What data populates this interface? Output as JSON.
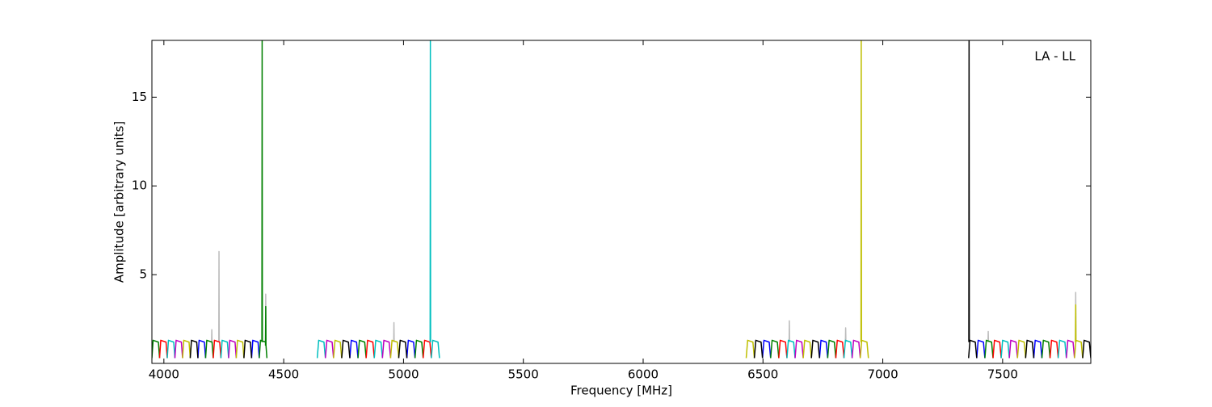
{
  "chart_data": {
    "type": "line",
    "xlabel": "Frequency [MHz]",
    "ylabel": "Amplitude [arbitrary units]",
    "annotation": "LA - LL",
    "xlim": [
      3950,
      7868
    ],
    "ylim": [
      0,
      18.2
    ],
    "xticks": [
      4000,
      4500,
      5000,
      5500,
      6000,
      6500,
      7000,
      7500
    ],
    "yticks": [
      5,
      10,
      15
    ],
    "grid": false,
    "series": [
      {
        "color": "#bbbbbb",
        "x": [
          4199,
          4200,
          4201,
          null,
          4229,
          4230,
          4231,
          null,
          4424,
          4425,
          4426,
          null,
          4959,
          4960,
          4961,
          null,
          6609,
          6610,
          6611,
          null,
          6844,
          6845,
          6846,
          null,
          7439,
          7440,
          7441,
          null,
          7804,
          7805,
          7806
        ],
        "values": [
          1.2,
          1.9,
          1.2,
          null,
          1.2,
          6.3,
          1.2,
          null,
          1.2,
          3.9,
          1.2,
          null,
          1.2,
          2.3,
          1.2,
          null,
          1.2,
          2.4,
          1.2,
          null,
          1.2,
          2.0,
          1.2,
          null,
          1.2,
          1.8,
          1.2,
          null,
          1.2,
          4.0,
          1.2
        ]
      },
      {
        "color": "#0000ff",
        "x": [
          4142,
          4147,
          4169,
          4174,
          null,
          4366,
          4371,
          4393,
          4398,
          null,
          4776,
          4782,
          4804,
          4810,
          null,
          5014,
          5020,
          5042,
          5048,
          null,
          6498,
          6504,
          6526,
          6532,
          null,
          6736,
          6742,
          6764,
          6770,
          null,
          7392,
          7398,
          7420,
          7426,
          null,
          7630,
          7636,
          7658,
          7664
        ],
        "values": [
          0.3,
          1.3,
          1.2,
          0.3,
          null,
          0.3,
          1.3,
          1.2,
          0.3,
          null,
          0.3,
          1.3,
          1.2,
          0.3,
          null,
          0.3,
          1.3,
          1.2,
          0.3,
          null,
          0.3,
          1.3,
          1.2,
          0.3,
          null,
          0.3,
          1.3,
          1.2,
          0.3,
          null,
          0.3,
          1.3,
          1.2,
          0.3,
          null,
          0.3,
          1.3,
          1.2,
          0.3
        ]
      },
      {
        "color": "#008000",
        "x": [
          3950,
          3955,
          3977,
          3982,
          null,
          4174,
          4179,
          4201,
          4206,
          null,
          4398,
          4403,
          4425,
          4430,
          null,
          4409,
          4410,
          4411,
          null,
          4424,
          4425,
          4426,
          null,
          4810,
          4816,
          4838,
          4844,
          null,
          5048,
          5054,
          5076,
          5082,
          null,
          6532,
          6538,
          6560,
          6566,
          null,
          6770,
          6776,
          6798,
          6804,
          null,
          7426,
          7432,
          7454,
          7460,
          null,
          7664,
          7670,
          7692,
          7698
        ],
        "values": [
          0.3,
          1.3,
          1.2,
          0.3,
          null,
          0.3,
          1.3,
          1.2,
          0.3,
          null,
          0.3,
          1.3,
          1.2,
          0.3,
          null,
          1.2,
          18.2,
          1.2,
          null,
          1.0,
          3.2,
          1.0,
          null,
          0.3,
          1.3,
          1.2,
          0.3,
          null,
          0.3,
          1.3,
          1.2,
          0.3,
          null,
          0.3,
          1.3,
          1.2,
          0.3,
          null,
          0.3,
          1.3,
          1.2,
          0.3,
          null,
          0.3,
          1.3,
          1.2,
          0.3,
          null,
          0.3,
          1.3,
          1.2,
          0.3
        ]
      },
      {
        "color": "#ff0000",
        "x": [
          3982,
          3987,
          4009,
          4014,
          null,
          4206,
          4211,
          4233,
          4238,
          null,
          4844,
          4850,
          4872,
          4878,
          null,
          5082,
          5088,
          5110,
          5116,
          null,
          6566,
          6572,
          6594,
          6600,
          null,
          6804,
          6810,
          6832,
          6838,
          null,
          7460,
          7466,
          7488,
          7494,
          null,
          7698,
          7704,
          7726,
          7732
        ],
        "values": [
          0.3,
          1.3,
          1.2,
          0.3,
          null,
          0.3,
          1.3,
          1.2,
          0.3,
          null,
          0.3,
          1.3,
          1.2,
          0.3,
          null,
          0.3,
          1.3,
          1.2,
          0.3,
          null,
          0.3,
          1.3,
          1.2,
          0.3,
          null,
          0.3,
          1.3,
          1.2,
          0.3,
          null,
          0.3,
          1.3,
          1.2,
          0.3,
          null,
          0.3,
          1.3,
          1.2,
          0.3
        ]
      },
      {
        "color": "#00bfbf",
        "x": [
          4014,
          4019,
          4041,
          4046,
          null,
          4238,
          4243,
          4265,
          4270,
          null,
          4640,
          4646,
          4668,
          4674,
          null,
          4878,
          4884,
          4906,
          4912,
          null,
          5116,
          5122,
          5144,
          5150,
          null,
          5111,
          5112,
          5113,
          null,
          6600,
          6606,
          6628,
          6634,
          null,
          6838,
          6844,
          6866,
          6872,
          null,
          7494,
          7500,
          7522,
          7528,
          null,
          7732,
          7738,
          7760,
          7766
        ],
        "values": [
          0.3,
          1.3,
          1.2,
          0.3,
          null,
          0.3,
          1.3,
          1.2,
          0.3,
          null,
          0.3,
          1.3,
          1.2,
          0.3,
          null,
          0.3,
          1.3,
          1.2,
          0.3,
          null,
          0.3,
          1.3,
          1.2,
          0.3,
          null,
          1.2,
          18.2,
          1.2,
          null,
          0.3,
          1.3,
          1.2,
          0.3,
          null,
          0.3,
          1.3,
          1.2,
          0.3,
          null,
          0.3,
          1.3,
          1.2,
          0.3,
          null,
          0.3,
          1.3,
          1.2,
          0.3
        ]
      },
      {
        "color": "#bf00bf",
        "x": [
          4046,
          4051,
          4073,
          4078,
          null,
          4270,
          4275,
          4297,
          4302,
          null,
          4674,
          4680,
          4702,
          4708,
          null,
          4912,
          4918,
          4940,
          4946,
          null,
          6634,
          6640,
          6662,
          6668,
          null,
          6872,
          6878,
          6900,
          6906,
          null,
          7528,
          7534,
          7556,
          7562,
          null,
          7766,
          7772,
          7794,
          7800
        ],
        "values": [
          0.3,
          1.3,
          1.2,
          0.3,
          null,
          0.3,
          1.3,
          1.2,
          0.3,
          null,
          0.3,
          1.3,
          1.2,
          0.3,
          null,
          0.3,
          1.3,
          1.2,
          0.3,
          null,
          0.3,
          1.3,
          1.2,
          0.3,
          null,
          0.3,
          1.3,
          1.2,
          0.3,
          null,
          0.3,
          1.3,
          1.2,
          0.3,
          null,
          0.3,
          1.3,
          1.2,
          0.3
        ]
      },
      {
        "color": "#bfbf00",
        "x": [
          4078,
          4083,
          4105,
          4110,
          null,
          4302,
          4307,
          4329,
          4334,
          null,
          4708,
          4714,
          4736,
          4742,
          null,
          4946,
          4952,
          4974,
          4980,
          null,
          6430,
          6436,
          6458,
          6464,
          null,
          6668,
          6674,
          6696,
          6702,
          null,
          6906,
          6912,
          6934,
          6940,
          null,
          6909,
          6910,
          6911,
          null,
          7562,
          7568,
          7590,
          7596,
          null,
          7800,
          7806,
          7828,
          7834,
          null,
          7804,
          7805,
          7806
        ],
        "values": [
          0.3,
          1.3,
          1.2,
          0.3,
          null,
          0.3,
          1.3,
          1.2,
          0.3,
          null,
          0.3,
          1.3,
          1.2,
          0.3,
          null,
          0.3,
          1.3,
          1.2,
          0.3,
          null,
          0.3,
          1.3,
          1.2,
          0.3,
          null,
          0.3,
          1.3,
          1.2,
          0.3,
          null,
          0.3,
          1.3,
          1.2,
          0.3,
          null,
          1.2,
          18.2,
          1.2,
          null,
          0.3,
          1.3,
          1.2,
          0.3,
          null,
          0.3,
          1.3,
          1.2,
          0.3,
          null,
          1.2,
          3.3,
          1.2
        ]
      },
      {
        "color": "#000000",
        "x": [
          4110,
          4115,
          4137,
          4142,
          null,
          4334,
          4339,
          4361,
          4366,
          null,
          4742,
          4748,
          4770,
          4776,
          null,
          4980,
          4986,
          5008,
          5014,
          null,
          6464,
          6470,
          6492,
          6498,
          null,
          6702,
          6708,
          6730,
          6736,
          null,
          7358,
          7364,
          7386,
          7392,
          null,
          7359,
          7360,
          7361,
          null,
          7596,
          7602,
          7624,
          7630,
          null,
          7834,
          7840,
          7862,
          7868
        ],
        "values": [
          0.3,
          1.3,
          1.2,
          0.3,
          null,
          0.3,
          1.3,
          1.2,
          0.3,
          null,
          0.3,
          1.3,
          1.2,
          0.3,
          null,
          0.3,
          1.3,
          1.2,
          0.3,
          null,
          0.3,
          1.3,
          1.2,
          0.3,
          null,
          0.3,
          1.3,
          1.2,
          0.3,
          null,
          0.3,
          1.3,
          1.2,
          0.3,
          null,
          1.2,
          18.2,
          1.2,
          null,
          0.3,
          1.3,
          1.2,
          0.3,
          null,
          0.3,
          1.3,
          1.2,
          0.3
        ]
      }
    ]
  }
}
